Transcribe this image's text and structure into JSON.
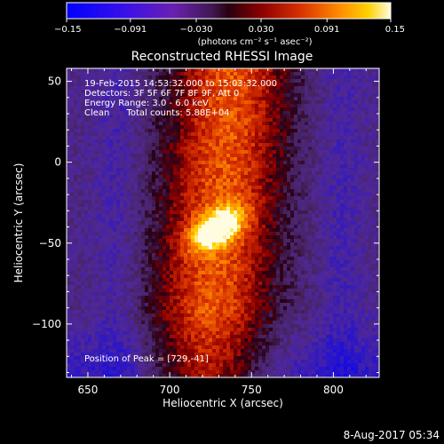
{
  "colorbar": {
    "tick_labels": [
      "−0.15",
      "−0.091",
      "−0.030",
      "0.030",
      "0.091",
      "0.15"
    ],
    "tick_values": [
      -0.15,
      -0.091,
      -0.03,
      0.03,
      0.091,
      0.15
    ],
    "range": [
      -0.15,
      0.15
    ],
    "units_label": "(photons cm⁻² s⁻¹ asec⁻²)"
  },
  "chart_data": {
    "type": "heatmap",
    "title": "Reconstructed RHESSI Image",
    "xlabel": "Heliocentric X (arcsec)",
    "ylabel": "Heliocentric Y (arcsec)",
    "xlim": [
      637,
      828
    ],
    "ylim": [
      -133,
      58
    ],
    "x_ticks": [
      650,
      700,
      750,
      800
    ],
    "x_tick_labels": [
      "650",
      "700",
      "750",
      "800"
    ],
    "y_ticks": [
      50,
      0,
      -50,
      -100
    ],
    "y_tick_labels": [
      "50",
      "0",
      "−50",
      "−100"
    ],
    "peak": {
      "x": 729,
      "y": -41
    },
    "value_range": [
      -0.15,
      0.15
    ],
    "colormap": "rhessi-std-gamma",
    "info_lines": [
      "19-Feb-2015 14:53:32.000 to 15:03:32.000",
      "Detectors: 3F 5F 6F 7F 8F 9F, Att 0",
      "Energy Range: 3.0 - 6.0 keV",
      "Clean      Total counts: 5.88E+04"
    ],
    "peak_label": "Position of Peak = [729,-41]"
  },
  "footer": {
    "timestamp": "8-Aug-2017 05:34"
  }
}
